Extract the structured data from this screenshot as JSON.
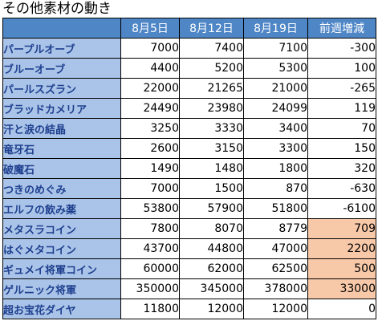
{
  "title": "その他素材の動き",
  "headers": [
    "",
    "8月5日",
    "8月12日",
    "8月19日",
    "前週増減"
  ],
  "highlight_color": "#f8c9a9",
  "rows": [
    {
      "name": "パープルオーブ",
      "v1": "7000",
      "v2": "7400",
      "v3": "7100",
      "diff": "-300",
      "hl": false
    },
    {
      "name": "ブルーオーブ",
      "v1": "4400",
      "v2": "5200",
      "v3": "5300",
      "diff": "100",
      "hl": false
    },
    {
      "name": "パールスズラン",
      "v1": "22000",
      "v2": "21265",
      "v3": "21000",
      "diff": "-265",
      "hl": false
    },
    {
      "name": "ブラッドカメリア",
      "v1": "24490",
      "v2": "23980",
      "v3": "24099",
      "diff": "119",
      "hl": false
    },
    {
      "name": "汗と涙の結晶",
      "v1": "3250",
      "v2": "3330",
      "v3": "3400",
      "diff": "70",
      "hl": false
    },
    {
      "name": "竜牙石",
      "v1": "2600",
      "v2": "3150",
      "v3": "3300",
      "diff": "150",
      "hl": false
    },
    {
      "name": "破魔石",
      "v1": "1490",
      "v2": "1480",
      "v3": "1800",
      "diff": "320",
      "hl": false
    },
    {
      "name": "つきのめぐみ",
      "v1": "7000",
      "v2": "1500",
      "v3": "870",
      "diff": "-630",
      "hl": false
    },
    {
      "name": "エルフの飲み薬",
      "v1": "53800",
      "v2": "57900",
      "v3": "51800",
      "diff": "-6100",
      "hl": false
    },
    {
      "name": "メタスラコイン",
      "v1": "7800",
      "v2": "8070",
      "v3": "8779",
      "diff": "709",
      "hl": true
    },
    {
      "name": "はぐメタコイン",
      "v1": "43700",
      "v2": "44800",
      "v3": "47000",
      "diff": "2200",
      "hl": true
    },
    {
      "name": "ギュメイ将軍コイン",
      "v1": "60000",
      "v2": "62000",
      "v3": "62500",
      "diff": "500",
      "hl": true
    },
    {
      "name": "ゲルニック将軍",
      "v1": "350000",
      "v2": "345000",
      "v3": "378000",
      "diff": "33000",
      "hl": true
    },
    {
      "name": "超お宝花ダイヤ",
      "v1": "11800",
      "v2": "12000",
      "v3": "12000",
      "diff": "0",
      "hl": false
    }
  ]
}
